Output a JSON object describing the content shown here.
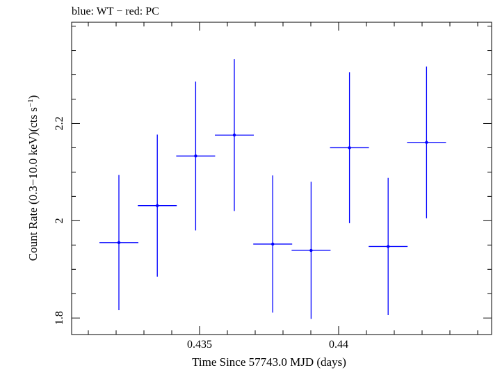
{
  "chart_data": {
    "type": "scatter",
    "title": "blue: WT − red: PC",
    "xlabel": "Time Since 57743.0 MJD (days)",
    "ylabel_main": "Count Rate (0.3−10.0 keV)(cts s",
    "ylabel_sup": "−1",
    "ylabel_close": ")",
    "xlim": [
      0.4304,
      0.4455
    ],
    "ylim": [
      1.766,
      2.408
    ],
    "x_major_ticks": [
      0.435,
      0.44
    ],
    "x_tick_labels": [
      "0.435",
      "0.44"
    ],
    "x_minor_step": 0.001,
    "y_major_ticks": [
      1.8,
      2.0,
      2.2
    ],
    "y_tick_labels": [
      "1.8",
      "2",
      "2.2"
    ],
    "y_minor_step": 0.05,
    "series": [
      {
        "name": "WT",
        "color": "#0000ff",
        "points": [
          {
            "x": 0.4321,
            "xerr": 0.0007,
            "y": 1.955,
            "yerr": 0.139
          },
          {
            "x": 0.43348,
            "xerr": 0.0007,
            "y": 2.031,
            "yerr": 0.146
          },
          {
            "x": 0.43486,
            "xerr": 0.0007,
            "y": 2.133,
            "yerr": 0.153
          },
          {
            "x": 0.43625,
            "xerr": 0.0007,
            "y": 2.176,
            "yerr": 0.156
          },
          {
            "x": 0.43763,
            "xerr": 0.0007,
            "y": 1.952,
            "yerr": 0.141
          },
          {
            "x": 0.43901,
            "xerr": 0.0007,
            "y": 1.939,
            "yerr": 0.141
          },
          {
            "x": 0.44039,
            "xerr": 0.0007,
            "y": 2.15,
            "yerr": 0.155
          },
          {
            "x": 0.44178,
            "xerr": 0.0007,
            "y": 1.947,
            "yerr": 0.141
          },
          {
            "x": 0.44316,
            "xerr": 0.0007,
            "y": 2.161,
            "yerr": 0.156
          }
        ]
      }
    ]
  }
}
